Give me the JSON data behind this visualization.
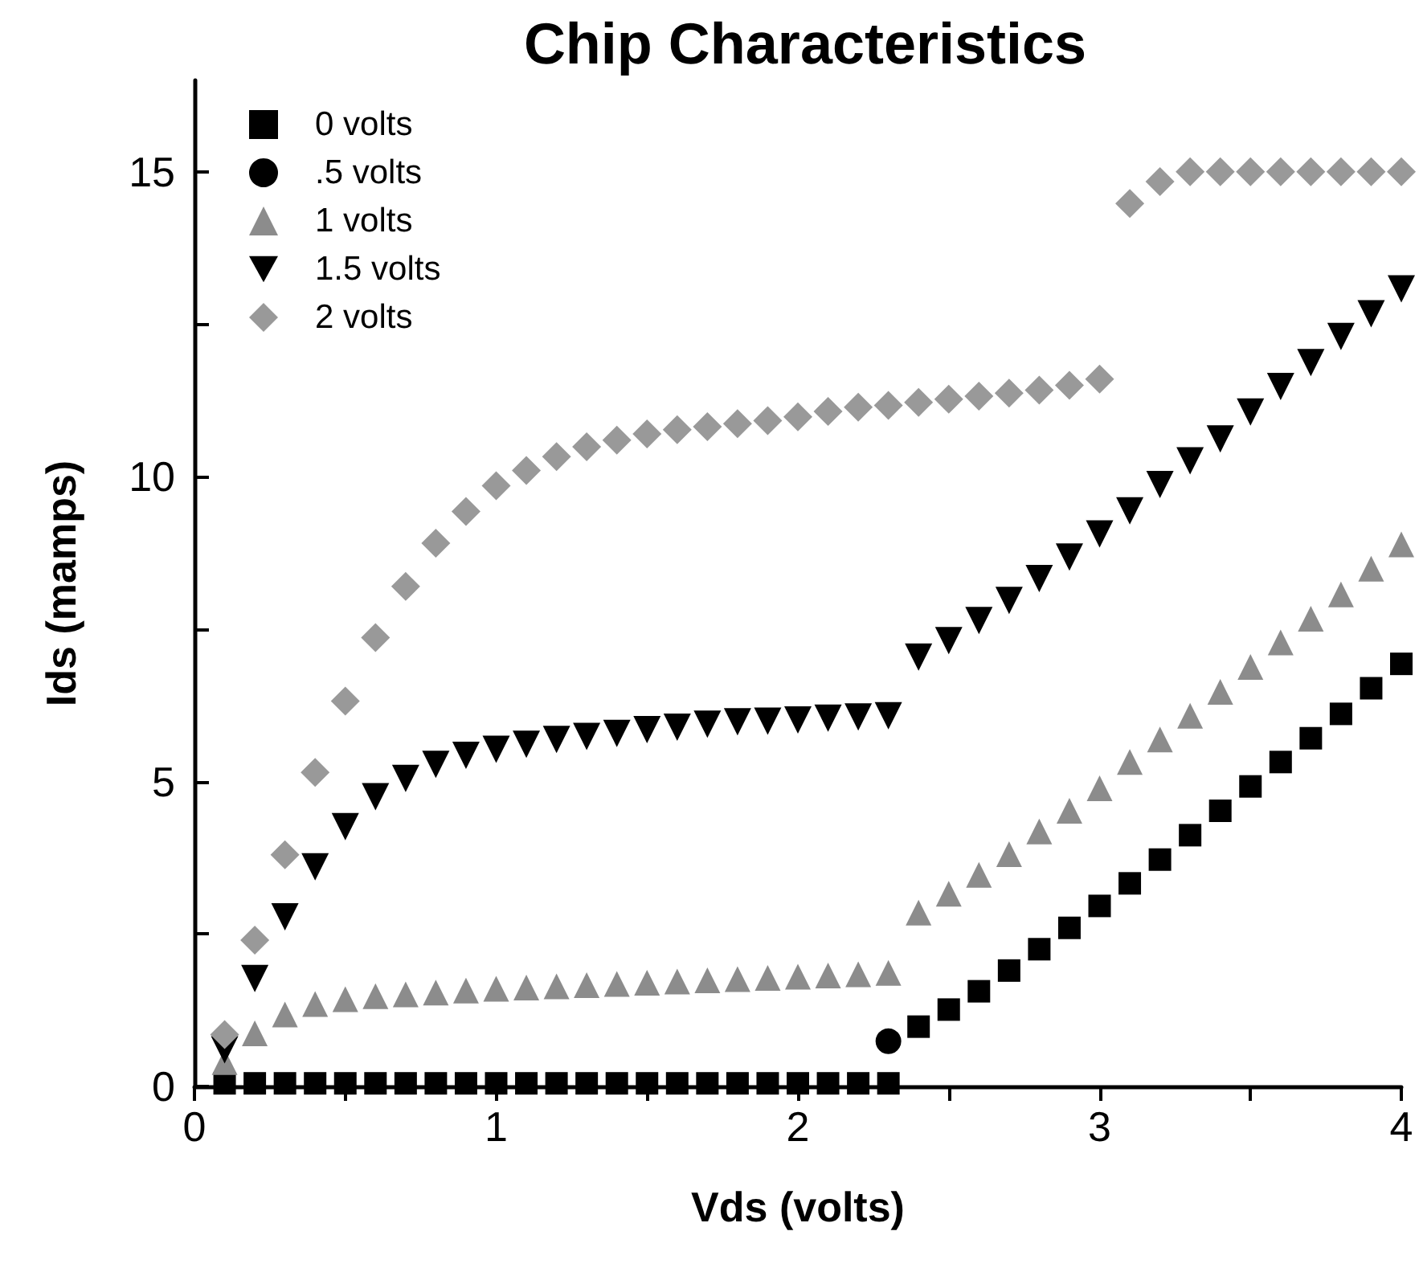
{
  "chart_data": {
    "type": "scatter",
    "title": "Chip Characteristics",
    "xlabel": "Vds (volts)",
    "ylabel": "Ids (mamps)",
    "xlim": [
      0,
      4
    ],
    "xticks": [
      0,
      {
        "value": 0.5,
        "label": null
      },
      1,
      {
        "value": 1.5,
        "label": null
      },
      2,
      {
        "value": 2.5,
        "label": null
      },
      3,
      {
        "value": 3.5,
        "label": null
      },
      4
    ],
    "ylim": [
      0,
      16.5
    ],
    "yticks": [
      0,
      {
        "value": 2.5,
        "label": null
      },
      5,
      {
        "value": 7.5,
        "label": null
      },
      10,
      {
        "value": 12.5,
        "label": null
      },
      15
    ],
    "grid": false,
    "legend": "top left",
    "series": [
      {
        "name": "0 volts",
        "color": "#000000",
        "marker": "square",
        "x": [
          0.1,
          0.2,
          0.3,
          0.4,
          0.5,
          0.6,
          0.7,
          0.8,
          0.9,
          1.0,
          1.1,
          1.2,
          1.3,
          1.4,
          1.5,
          1.6,
          1.7,
          1.8,
          1.9,
          2.0,
          2.1,
          2.2,
          2.3,
          2.4,
          2.5,
          2.6,
          2.7,
          2.8,
          2.9,
          3.0,
          3.1,
          3.2,
          3.3,
          3.4,
          3.5,
          3.6,
          3.7,
          3.8,
          3.9,
          4.0
        ],
        "values": [
          0.05,
          0.05,
          0.05,
          0.05,
          0.05,
          0.05,
          0.05,
          0.05,
          0.05,
          0.05,
          0.05,
          0.05,
          0.05,
          0.05,
          0.05,
          0.05,
          0.05,
          0.05,
          0.05,
          0.05,
          0.05,
          0.05,
          0.05,
          0.98,
          1.26,
          1.56,
          1.9,
          2.25,
          2.6,
          2.96,
          3.33,
          3.72,
          4.12,
          4.52,
          4.92,
          5.32,
          5.71,
          6.11,
          6.53,
          6.93
        ]
      },
      {
        "name": ".5 volts",
        "color": "#000000",
        "marker": "circle",
        "x": [
          2.3
        ],
        "values": [
          0.74
        ]
      },
      {
        "name": "1 volts",
        "color": "#8c8c8c",
        "marker": "triangle",
        "x": [
          0.1,
          0.2,
          0.3,
          0.4,
          0.5,
          0.6,
          0.7,
          0.8,
          0.9,
          1.0,
          1.1,
          1.2,
          1.3,
          1.4,
          1.5,
          1.6,
          1.7,
          1.8,
          1.9,
          2.0,
          2.1,
          2.2,
          2.3,
          2.4,
          2.5,
          2.6,
          2.7,
          2.8,
          2.9,
          3.0,
          3.1,
          3.2,
          3.3,
          3.4,
          3.5,
          3.6,
          3.7,
          3.8,
          3.9,
          4.0
        ],
        "values": [
          0.4,
          0.87,
          1.18,
          1.35,
          1.43,
          1.48,
          1.51,
          1.54,
          1.57,
          1.6,
          1.62,
          1.64,
          1.66,
          1.68,
          1.7,
          1.72,
          1.74,
          1.76,
          1.78,
          1.8,
          1.82,
          1.84,
          1.86,
          2.85,
          3.16,
          3.47,
          3.81,
          4.18,
          4.52,
          4.89,
          5.32,
          5.69,
          6.08,
          6.47,
          6.88,
          7.28,
          7.67,
          8.07,
          8.49,
          8.89
        ]
      },
      {
        "name": "1.5 volts",
        "color": "#000000",
        "marker": "triangle-down",
        "x": [
          0.1,
          0.2,
          0.3,
          0.4,
          0.5,
          0.6,
          0.7,
          0.8,
          0.9,
          1.0,
          1.1,
          1.2,
          1.3,
          1.4,
          1.5,
          1.6,
          1.7,
          1.8,
          1.9,
          2.0,
          2.1,
          2.2,
          2.3,
          2.4,
          2.5,
          2.6,
          2.7,
          2.8,
          2.9,
          3.0,
          3.1,
          3.2,
          3.3,
          3.4,
          3.5,
          3.6,
          3.7,
          3.8,
          3.9,
          4.0
        ],
        "values": [
          0.6,
          1.77,
          2.78,
          3.6,
          4.26,
          4.75,
          5.05,
          5.28,
          5.43,
          5.53,
          5.61,
          5.69,
          5.74,
          5.79,
          5.85,
          5.89,
          5.94,
          5.98,
          5.99,
          6.01,
          6.04,
          6.06,
          6.08,
          7.04,
          7.31,
          7.64,
          7.97,
          8.33,
          8.68,
          9.06,
          9.44,
          9.87,
          10.26,
          10.62,
          11.06,
          11.48,
          11.87,
          12.3,
          12.67,
          13.08
        ]
      },
      {
        "name": "2 volts",
        "color": "#999999",
        "marker": "diamond",
        "x": [
          0.1,
          0.2,
          0.3,
          0.4,
          0.5,
          0.6,
          0.7,
          0.8,
          0.9,
          1.0,
          1.1,
          1.2,
          1.3,
          1.4,
          1.5,
          1.6,
          1.7,
          1.8,
          1.9,
          2.0,
          2.1,
          2.2,
          2.3,
          2.4,
          2.5,
          2.6,
          2.7,
          2.8,
          2.9,
          3.0,
          3.1,
          3.2,
          3.3,
          3.4,
          3.5,
          3.6,
          3.7,
          3.8,
          3.9,
          4.0
        ],
        "values": [
          0.85,
          2.4,
          3.8,
          5.15,
          6.32,
          7.36,
          8.2,
          8.91,
          9.43,
          9.85,
          10.1,
          10.33,
          10.49,
          10.6,
          10.7,
          10.77,
          10.82,
          10.87,
          10.92,
          10.98,
          11.07,
          11.14,
          11.17,
          11.22,
          11.27,
          11.32,
          11.37,
          11.42,
          11.5,
          11.6,
          14.48,
          14.84,
          15.0,
          15.0,
          15.0,
          15.0,
          15.0,
          15.0,
          15.0,
          15.0
        ]
      }
    ]
  }
}
